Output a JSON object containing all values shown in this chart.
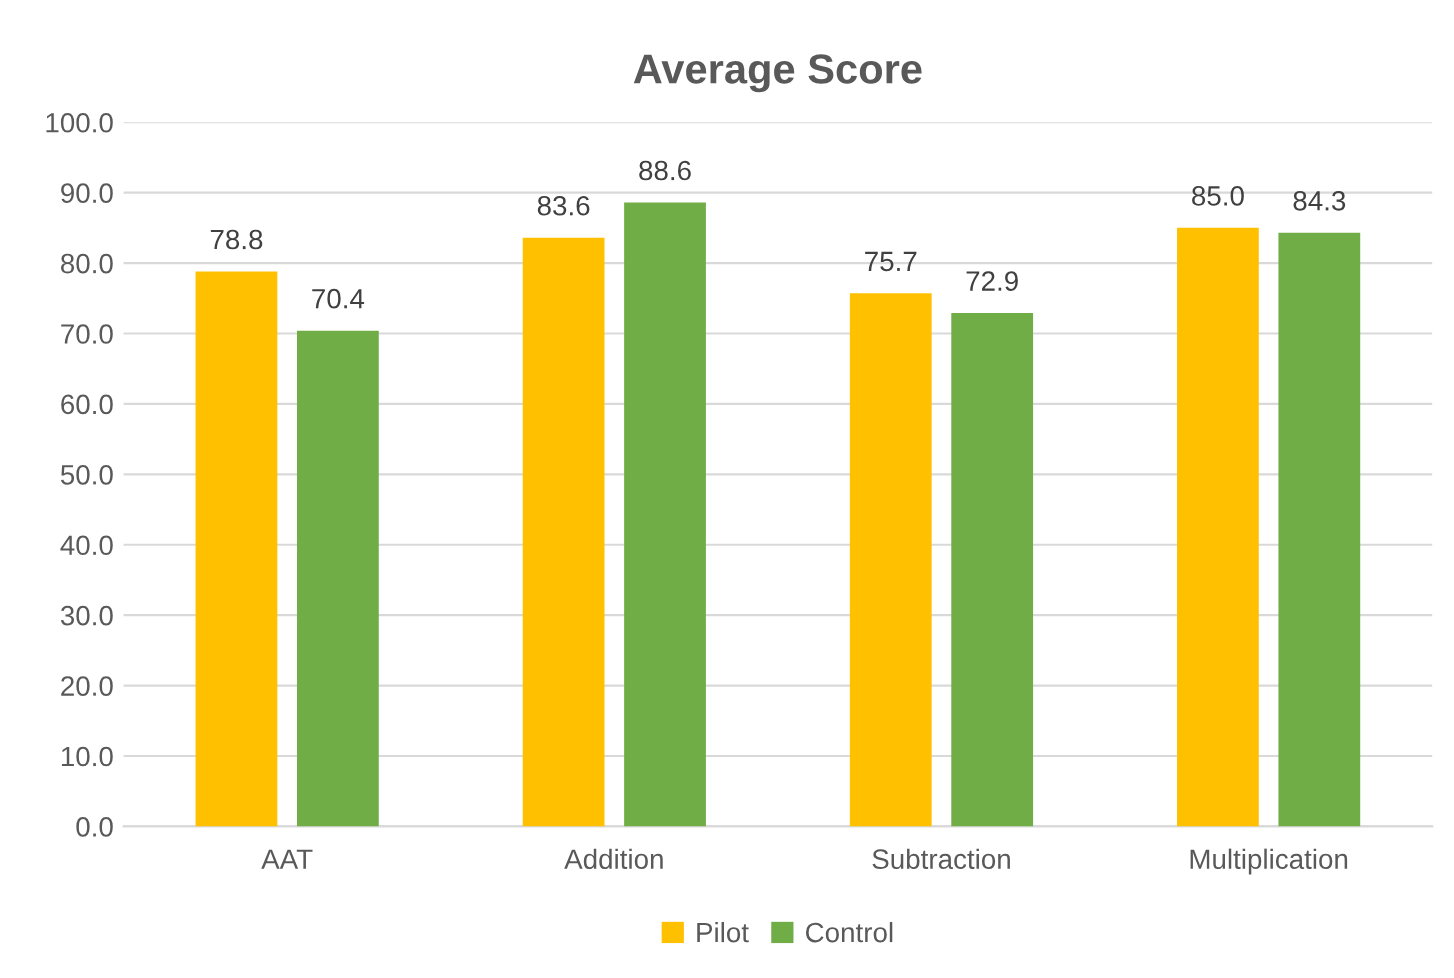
{
  "chart_data": {
    "type": "bar",
    "title": "Average Score",
    "categories": [
      "AAT",
      "Addition",
      "Subtraction",
      "Multiplication"
    ],
    "series": [
      {
        "name": "Pilot",
        "color": "#ffc000",
        "values": [
          78.8,
          83.6,
          75.7,
          85.0
        ],
        "value_labels": [
          "78.8",
          "83.6",
          "75.7",
          "85.0"
        ]
      },
      {
        "name": "Control",
        "color": "#70ad47",
        "values": [
          70.4,
          88.6,
          72.9,
          84.3
        ],
        "value_labels": [
          "70.4",
          "88.6",
          "72.9",
          "84.3"
        ]
      }
    ],
    "ylim": [
      0,
      100
    ],
    "yticks": [
      {
        "value": 0,
        "label": "0.0"
      },
      {
        "value": 10,
        "label": "10.0"
      },
      {
        "value": 20,
        "label": "20.0"
      },
      {
        "value": 30,
        "label": "30.0"
      },
      {
        "value": 40,
        "label": "40.0"
      },
      {
        "value": 50,
        "label": "50.0"
      },
      {
        "value": 60,
        "label": "60.0"
      },
      {
        "value": 70,
        "label": "70.0"
      },
      {
        "value": 80,
        "label": "80.0"
      },
      {
        "value": 90,
        "label": "90.0"
      },
      {
        "value": 100,
        "label": "100.0"
      }
    ],
    "grid": "y",
    "legend": "bottom"
  }
}
